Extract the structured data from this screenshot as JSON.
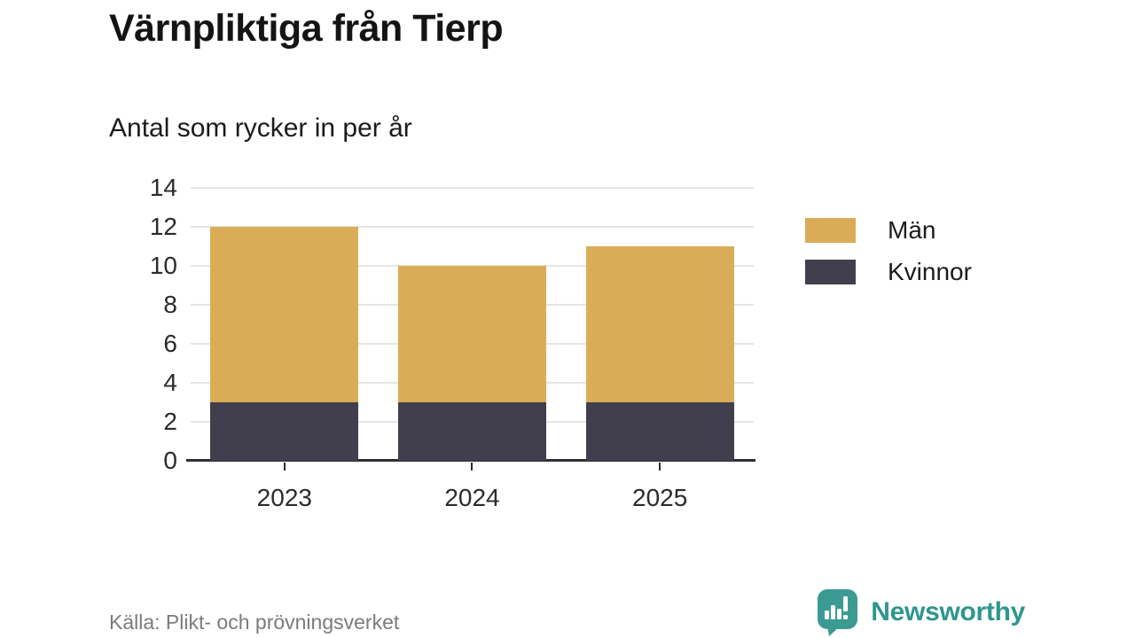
{
  "header": {
    "title": "Värnpliktiga från Tierp",
    "subtitle": "Antal som rycker in per år"
  },
  "chart_data": {
    "type": "bar",
    "stacked": true,
    "title": "Värnpliktiga från Tierp",
    "subtitle": "Antal som rycker in per år",
    "categories": [
      "2023",
      "2024",
      "2025"
    ],
    "series": [
      {
        "name": "Kvinnor",
        "color": "#413F4E",
        "values": [
          3,
          3,
          3
        ]
      },
      {
        "name": "Män",
        "color": "#DBAC58",
        "values": [
          9,
          7,
          8
        ]
      }
    ],
    "totals": [
      12,
      10,
      11
    ],
    "stack_order_bottom_to_top": [
      "Kvinnor",
      "Män"
    ],
    "legend": [
      {
        "label": "Män",
        "color": "#DBAC58"
      },
      {
        "label": "Kvinnor",
        "color": "#413F4E"
      }
    ],
    "legend_position": "right",
    "xlabel": "",
    "ylabel": "",
    "ylim": [
      0,
      14
    ],
    "ytick_step": 2,
    "yticks": [
      0,
      2,
      4,
      6,
      8,
      10,
      12,
      14
    ],
    "grid": true,
    "grid_color": "#E5E5E5",
    "axis_color": "#2E2D33"
  },
  "footer": {
    "source": "Källa: Plikt- och prövningsverket",
    "brand": "Newsworthy",
    "brand_color": "#2E968F",
    "brand_icon_color": "#3B9B93"
  }
}
